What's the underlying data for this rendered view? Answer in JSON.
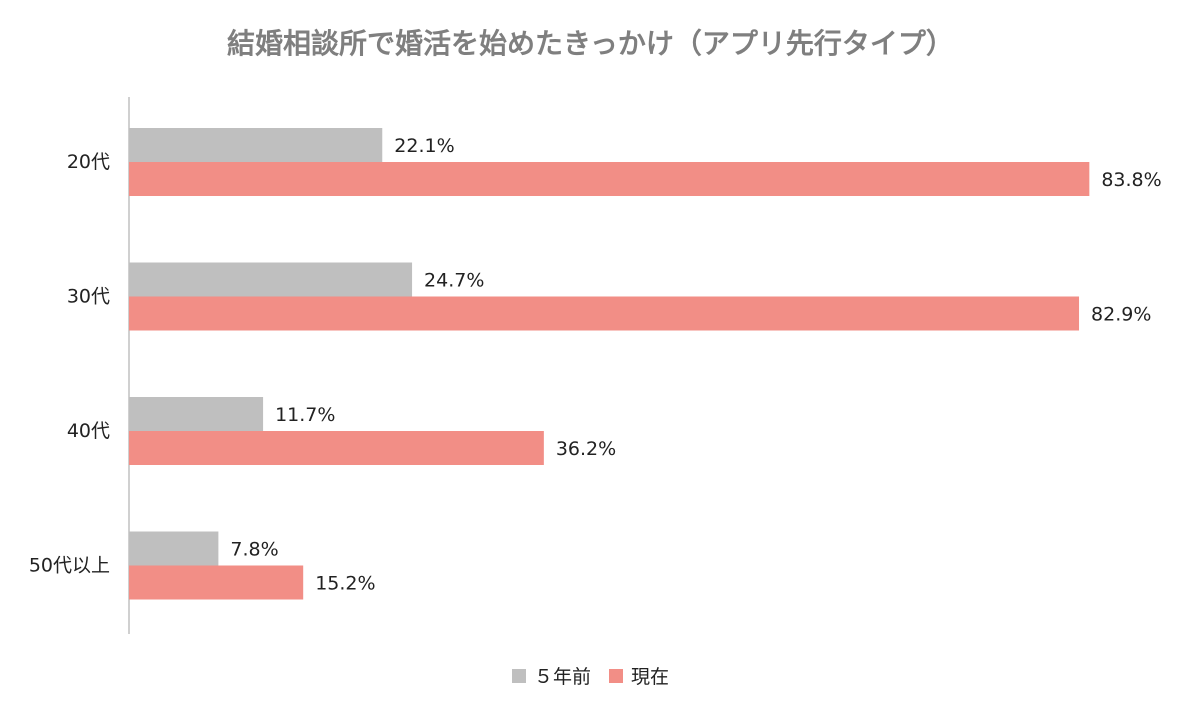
{
  "chart_data": {
    "type": "bar",
    "orientation": "horizontal",
    "title": "結婚相談所で婚活を始めたきっかけ（アプリ先行タイプ）",
    "categories": [
      "20代",
      "30代",
      "40代",
      "50代以上"
    ],
    "series": [
      {
        "name": "５年前",
        "color": "#bfbfbf",
        "values": [
          22.1,
          24.7,
          11.7,
          7.8
        ],
        "labels": [
          "22.1%",
          "24.7%",
          "11.7%",
          "7.8%"
        ]
      },
      {
        "name": "現在",
        "color": "#f28e86",
        "values": [
          83.8,
          82.9,
          36.2,
          15.2
        ],
        "labels": [
          "83.8%",
          "82.9%",
          "36.2%",
          "15.2%"
        ]
      }
    ],
    "xlim": [
      0,
      100
    ],
    "grid": false,
    "legend_position": "bottom"
  }
}
